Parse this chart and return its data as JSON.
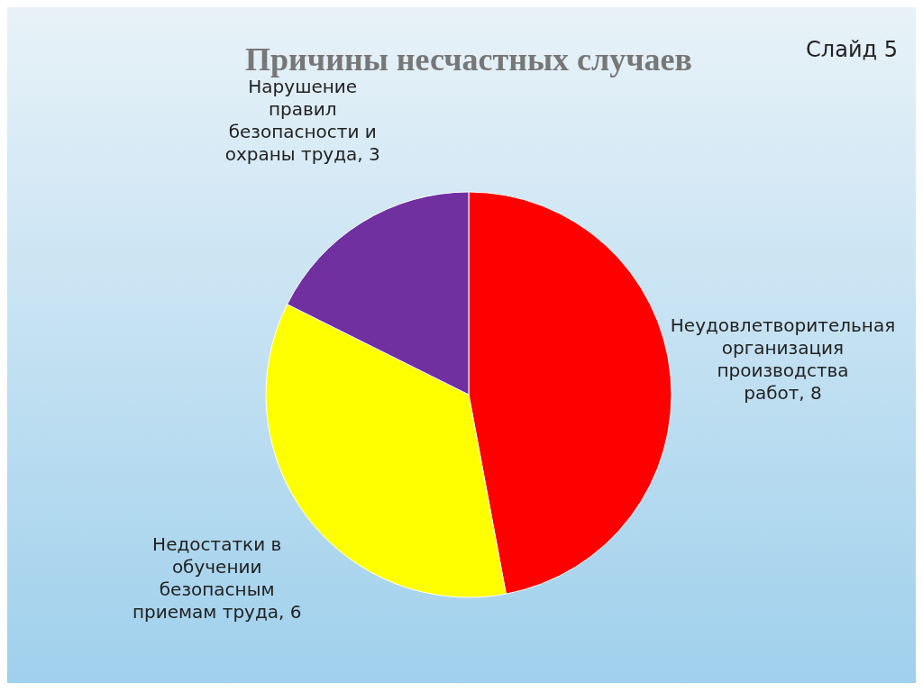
{
  "chart_data": {
    "type": "pie",
    "title": "Причины несчастных случаев",
    "annotations": [
      "Слайд 5"
    ],
    "categories": [
      "Неудовлетворительная организация производства работ",
      "Недостатки в обучении безопасным приемам труда",
      "Нарушение правил безопасности и охраны труда"
    ],
    "values": [
      8,
      6,
      3
    ],
    "colors": [
      "#ff0000",
      "#ffff00",
      "#7030a0"
    ],
    "value_labels": [
      ", 8",
      ", 6",
      ", 3"
    ]
  }
}
